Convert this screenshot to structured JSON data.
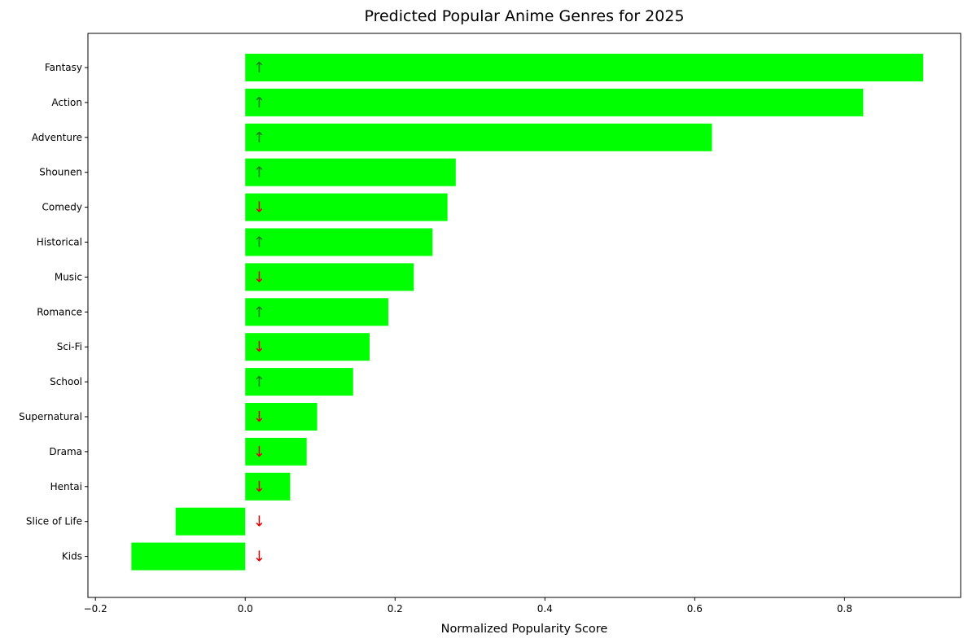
{
  "chart_data": {
    "type": "bar",
    "orientation": "horizontal",
    "title": "Predicted Popular Anime Genres for 2025",
    "xlabel": "Normalized Popularity Score",
    "ylabel": "",
    "xlim": [
      -0.21,
      0.955
    ],
    "xticks": [
      -0.2,
      0.0,
      0.2,
      0.4,
      0.6,
      0.8
    ],
    "xtick_labels": [
      "−0.2",
      "0.0",
      "0.2",
      "0.4",
      "0.6",
      "0.8"
    ],
    "categories": [
      "Fantasy",
      "Action",
      "Adventure",
      "Shounen",
      "Comedy",
      "Historical",
      "Music",
      "Romance",
      "Sci-Fi",
      "School",
      "Supernatural",
      "Drama",
      "Hentai",
      "Slice of Life",
      "Kids"
    ],
    "values": [
      0.905,
      0.825,
      0.623,
      0.281,
      0.27,
      0.25,
      0.225,
      0.191,
      0.166,
      0.144,
      0.096,
      0.082,
      0.06,
      -0.093,
      -0.152
    ],
    "trend_symbols": [
      "↑",
      "↑",
      "↑",
      "↑",
      "↓",
      "↑",
      "↓",
      "↑",
      "↓",
      "↑",
      "↓",
      "↓",
      "↓",
      "↓",
      "↓"
    ],
    "bar_color": "#00ff00",
    "up_color": "#1f7a1f",
    "down_color": "#e00000",
    "grid": false,
    "legend": "none"
  }
}
